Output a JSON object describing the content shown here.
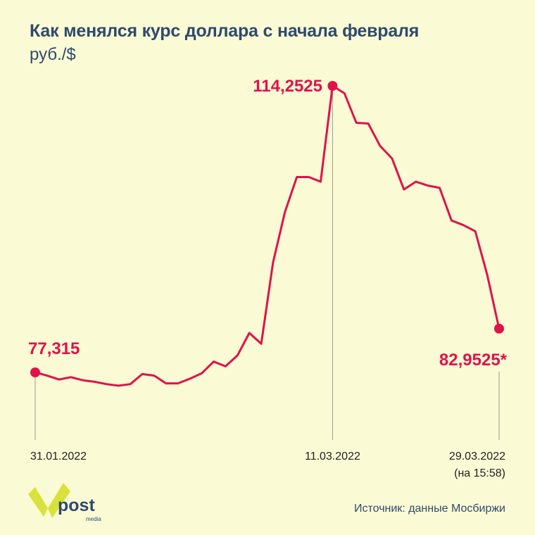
{
  "title": "Как менялся курс доллара с начала февраля",
  "subtitle": "руб./$",
  "source": "Источник: данные Мосбиржи",
  "logo": {
    "text": "post",
    "small_text": "media"
  },
  "colors": {
    "background": "#fafad4",
    "line": "#e0124a",
    "title": "#2e4a6e",
    "logo_yellow": "#d8e23a"
  },
  "chart_data": {
    "type": "line",
    "title": "Как менялся курс доллара с начала февраля",
    "ylabel": "руб./$",
    "x_start_label": "31.01.2022",
    "x_end_label": "29.03.2022",
    "ylim": [
      70,
      118
    ],
    "values": [
      77.315,
      76.9,
      76.4,
      76.7,
      76.3,
      76.1,
      75.8,
      75.6,
      75.8,
      77.1,
      76.9,
      75.9,
      75.9,
      76.5,
      77.2,
      78.7,
      78.1,
      79.5,
      82.4,
      81.0,
      91.5,
      98.0,
      102.5,
      102.5,
      101.9,
      114.2525,
      113.3,
      109.5,
      109.4,
      106.5,
      104.9,
      100.9,
      101.9,
      101.4,
      101.1,
      96.9,
      96.3,
      95.5,
      89.9,
      82.9525
    ],
    "annotations": [
      {
        "date": "31.01.2022",
        "value": "77,315",
        "index": 0
      },
      {
        "date": "11.03.2022",
        "value": "114,2525",
        "index": 25
      },
      {
        "date": "29.03.2022",
        "note": "(на 15:58)",
        "value": "82,9525*",
        "index": 39
      }
    ]
  }
}
